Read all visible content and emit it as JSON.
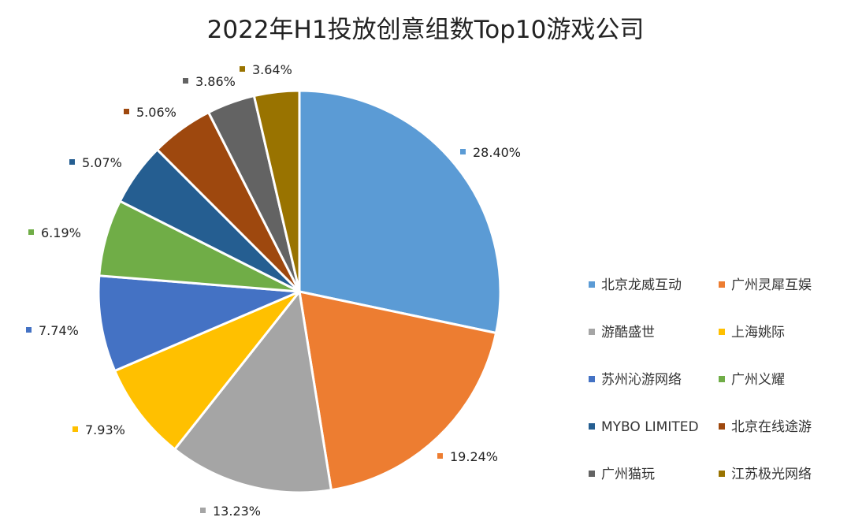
{
  "chart_data": {
    "type": "pie",
    "title": "2022年H1投放创意组数Top10游戏公司",
    "legend_position": "right",
    "slices": [
      {
        "label": "北京龙威互动",
        "value": 28.4,
        "display": "28.40%",
        "color": "#5B9BD5"
      },
      {
        "label": "广州灵犀互娱",
        "value": 19.24,
        "display": "19.24%",
        "color": "#ED7D31"
      },
      {
        "label": "游酷盛世",
        "value": 13.23,
        "display": "13.23%",
        "color": "#A5A5A5"
      },
      {
        "label": "上海姚际",
        "value": 7.93,
        "display": "7.93%",
        "color": "#FFC000"
      },
      {
        "label": "苏州沁游网络",
        "value": 7.74,
        "display": "7.74%",
        "color": "#4472C4"
      },
      {
        "label": "广州义耀",
        "value": 6.19,
        "display": "6.19%",
        "color": "#70AD47"
      },
      {
        "label": "MYBO LIMITED",
        "value": 5.07,
        "display": "5.07%",
        "color": "#255E91"
      },
      {
        "label": "北京在线途游",
        "value": 5.06,
        "display": "5.06%",
        "color": "#9E480E"
      },
      {
        "label": "广州猫玩",
        "value": 3.86,
        "display": "3.86%",
        "color": "#636363"
      },
      {
        "label": "江苏极光网络",
        "value": 3.64,
        "display": "3.64%",
        "color": "#997300"
      }
    ]
  }
}
